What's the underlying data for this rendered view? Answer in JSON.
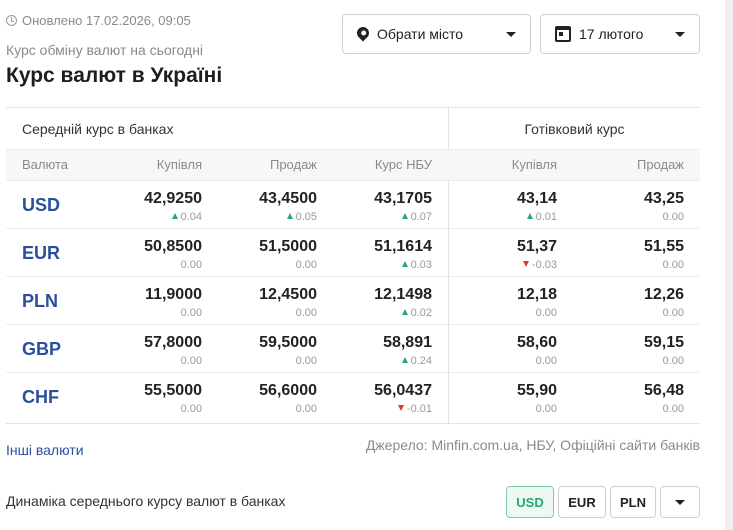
{
  "header": {
    "updated": "Оновлено 17.02.2026, 09:05",
    "subtitle": "Курс обміну валют на сьогодні",
    "title": "Курс валют в Україні"
  },
  "filters": {
    "city_label": "Обрати місто",
    "date_label": "17 лютого"
  },
  "table": {
    "group_avg": "Середній курс в банках",
    "group_cash": "Готівковий курс",
    "headers": [
      "Валюта",
      "Купівля",
      "Продаж",
      "Курс НБУ",
      "Купівля",
      "Продаж"
    ],
    "rows": [
      {
        "code": "USD",
        "buy": "42,9250",
        "buy_chg": "0.04",
        "buy_dir": "up",
        "sell": "43,4500",
        "sell_chg": "0.05",
        "sell_dir": "up",
        "nbu": "43,1705",
        "nbu_chg": "0.07",
        "nbu_dir": "up",
        "cash_buy": "43,14",
        "cash_buy_chg": "0.01",
        "cash_buy_dir": "up",
        "cash_sell": "43,25",
        "cash_sell_chg": "0.00",
        "cash_sell_dir": "none"
      },
      {
        "code": "EUR",
        "buy": "50,8500",
        "buy_chg": "0.00",
        "buy_dir": "none",
        "sell": "51,5000",
        "sell_chg": "0.00",
        "sell_dir": "none",
        "nbu": "51,1614",
        "nbu_chg": "0.03",
        "nbu_dir": "up",
        "cash_buy": "51,37",
        "cash_buy_chg": "-0.03",
        "cash_buy_dir": "down",
        "cash_sell": "51,55",
        "cash_sell_chg": "0.00",
        "cash_sell_dir": "none"
      },
      {
        "code": "PLN",
        "buy": "11,9000",
        "buy_chg": "0.00",
        "buy_dir": "none",
        "sell": "12,4500",
        "sell_chg": "0.00",
        "sell_dir": "none",
        "nbu": "12,1498",
        "nbu_chg": "0.02",
        "nbu_dir": "up",
        "cash_buy": "12,18",
        "cash_buy_chg": "0.00",
        "cash_buy_dir": "none",
        "cash_sell": "12,26",
        "cash_sell_chg": "0.00",
        "cash_sell_dir": "none"
      },
      {
        "code": "GBP",
        "buy": "57,8000",
        "buy_chg": "0.00",
        "buy_dir": "none",
        "sell": "59,5000",
        "sell_chg": "0.00",
        "sell_dir": "none",
        "nbu": "58,891",
        "nbu_chg": "0.24",
        "nbu_dir": "up",
        "cash_buy": "58,60",
        "cash_buy_chg": "0.00",
        "cash_buy_dir": "none",
        "cash_sell": "59,15",
        "cash_sell_chg": "0.00",
        "cash_sell_dir": "none"
      },
      {
        "code": "CHF",
        "buy": "55,5000",
        "buy_chg": "0.00",
        "buy_dir": "none",
        "sell": "56,6000",
        "sell_chg": "0.00",
        "sell_dir": "none",
        "nbu": "56,0437",
        "nbu_chg": "-0.01",
        "nbu_dir": "down",
        "cash_buy": "55,90",
        "cash_buy_chg": "0.00",
        "cash_buy_dir": "none",
        "cash_sell": "56,48",
        "cash_sell_chg": "0.00",
        "cash_sell_dir": "none"
      }
    ]
  },
  "footer": {
    "other_link": "Інші валюти",
    "source": "Джерело: Minfin.com.ua, НБУ, Офіційні сайти банків"
  },
  "dynamics": {
    "title": "Динаміка середнього курсу валют в банках",
    "buttons": [
      "USD",
      "EUR",
      "PLN"
    ],
    "active": "USD"
  },
  "colors": {
    "accent_blue": "#2a4f9c",
    "up_green": "#27a96b",
    "down_red": "#e03535"
  }
}
